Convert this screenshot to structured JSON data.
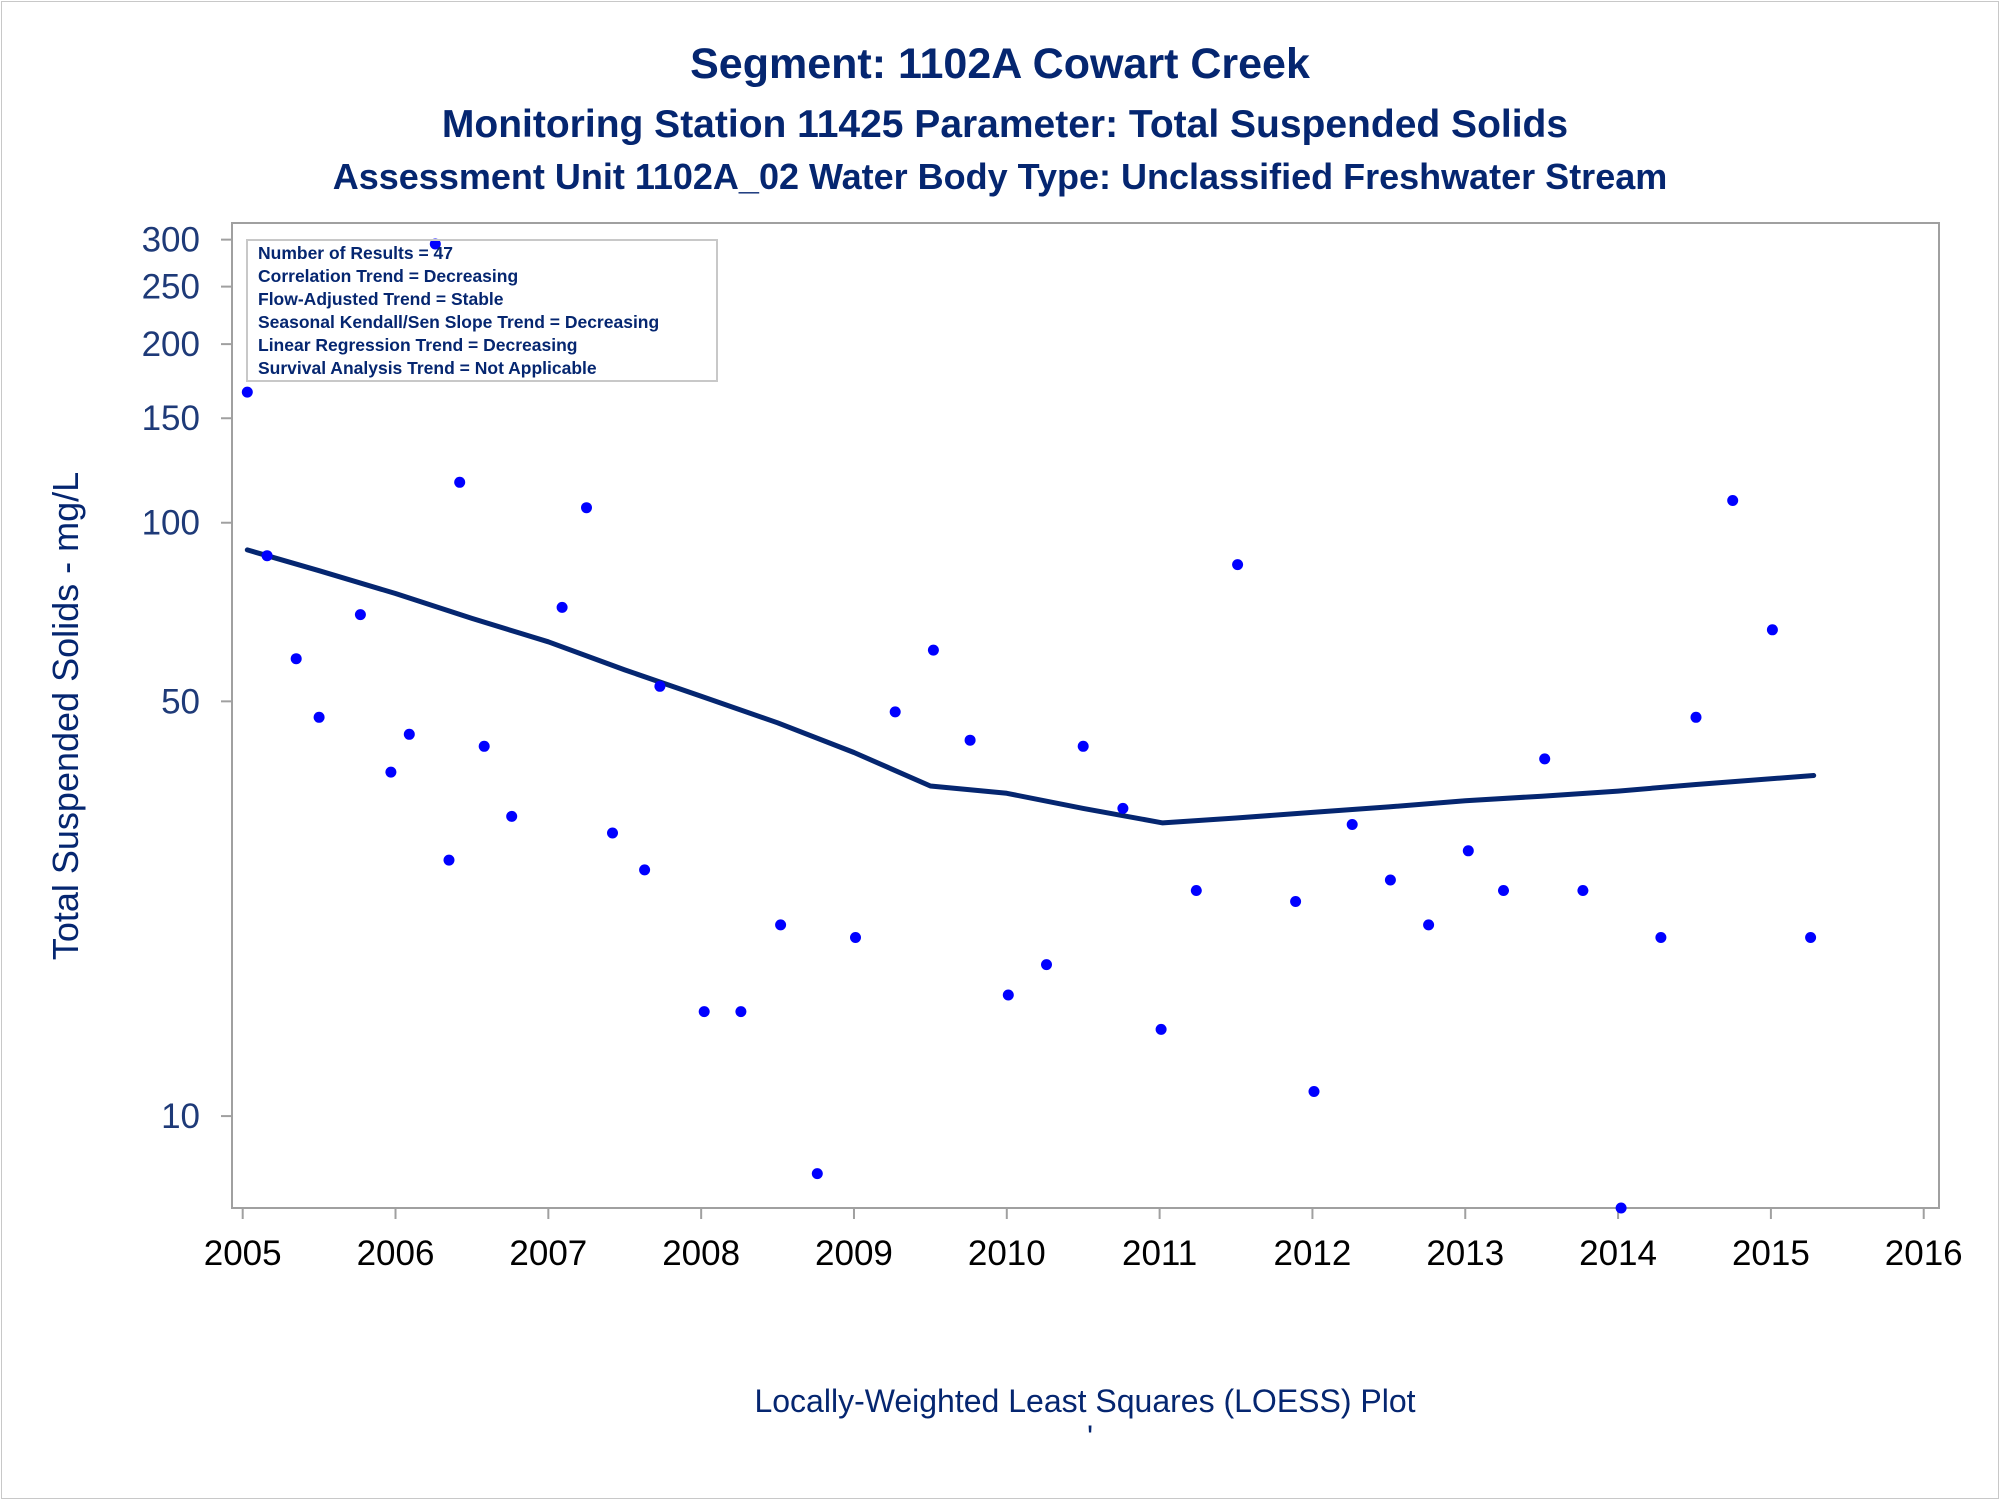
{
  "chart_data": {
    "type": "scatter",
    "title": "Segment: 1102A  Cowart Creek",
    "subtitle": "Monitoring Station 11425 Parameter: Total Suspended Solids",
    "subtitle2": "Assessment Unit 1102A_02   Water Body Type: Unclassified Freshwater Stream",
    "ylabel": "Total Suspended Solids - mg/L",
    "footnote": "Locally-Weighted Least Squares (LOESS) Plot",
    "footnote_mark": "'",
    "y_scale": "log",
    "y_ticks": [
      10,
      50,
      100,
      150,
      200,
      250,
      300
    ],
    "y_tick_labels": [
      "10",
      "50",
      "100",
      "150",
      "200",
      "250",
      "300"
    ],
    "x_ticks": [
      2005,
      2006,
      2007,
      2008,
      2009,
      2010,
      2011,
      2012,
      2013,
      2014,
      2015,
      2016
    ],
    "x_tick_labels": [
      "2005",
      "2006",
      "2007",
      "2008",
      "2009",
      "2010",
      "2011",
      "2012",
      "2013",
      "2014",
      "2015",
      "2016"
    ],
    "xlim": [
      2004.93,
      2016.1
    ],
    "ylim": [
      7,
      320
    ],
    "grid": false,
    "inset": [
      "Number of Results = 47",
      "Correlation Trend = Decreasing",
      "Flow-Adjusted Trend = Stable",
      "Seasonal Kendall/Sen Slope Trend = Decreasing",
      "Linear Regression Trend = Decreasing",
      "Survival Analysis Trend = Not Applicable"
    ],
    "inset_placement": "top-left",
    "colors": {
      "points": "#0000ff",
      "loess": "#052670",
      "text": "#052670",
      "frame": "#a0a0a0"
    },
    "series": [
      {
        "kind": "points",
        "points": [
          [
            2005.03,
            166
          ],
          [
            2005.16,
            88
          ],
          [
            2005.35,
            59
          ],
          [
            2005.5,
            47
          ],
          [
            2005.77,
            70
          ],
          [
            2005.97,
            38
          ],
          [
            2006.09,
            44
          ],
          [
            2006.26,
            295
          ],
          [
            2006.35,
            27
          ],
          [
            2006.42,
            117
          ],
          [
            2006.58,
            42
          ],
          [
            2006.76,
            32
          ],
          [
            2007.09,
            72
          ],
          [
            2007.25,
            106
          ],
          [
            2007.42,
            30
          ],
          [
            2007.63,
            26
          ],
          [
            2007.73,
            53
          ],
          [
            2008.02,
            15
          ],
          [
            2008.26,
            15
          ],
          [
            2008.52,
            21
          ],
          [
            2008.76,
            8
          ],
          [
            2009.01,
            20
          ],
          [
            2009.27,
            48
          ],
          [
            2009.52,
            61
          ],
          [
            2009.76,
            43
          ],
          [
            2010.01,
            16
          ],
          [
            2010.26,
            18
          ],
          [
            2010.5,
            42
          ],
          [
            2010.76,
            33
          ],
          [
            2011.01,
            14
          ],
          [
            2011.24,
            24
          ],
          [
            2011.51,
            85
          ],
          [
            2011.89,
            23
          ],
          [
            2012.01,
            11
          ],
          [
            2012.26,
            31
          ],
          [
            2012.51,
            25
          ],
          [
            2012.76,
            21
          ],
          [
            2013.02,
            28
          ],
          [
            2013.25,
            24
          ],
          [
            2013.52,
            40
          ],
          [
            2013.77,
            24
          ],
          [
            2014.02,
            7
          ],
          [
            2014.28,
            20
          ],
          [
            2014.51,
            47
          ],
          [
            2014.75,
            109
          ],
          [
            2015.01,
            66
          ],
          [
            2015.26,
            20
          ]
        ]
      },
      {
        "kind": "loess",
        "points": [
          [
            2005.03,
            90
          ],
          [
            2005.5,
            83
          ],
          [
            2006.0,
            76
          ],
          [
            2006.5,
            69
          ],
          [
            2007.0,
            63
          ],
          [
            2007.5,
            56.5
          ],
          [
            2008.0,
            51
          ],
          [
            2008.5,
            46
          ],
          [
            2009.0,
            41
          ],
          [
            2009.5,
            36
          ],
          [
            2010.0,
            35
          ],
          [
            2010.5,
            33
          ],
          [
            2011.02,
            31.2
          ],
          [
            2011.5,
            31.8
          ],
          [
            2012.0,
            32.5
          ],
          [
            2012.5,
            33.2
          ],
          [
            2013.0,
            34
          ],
          [
            2013.5,
            34.6
          ],
          [
            2014.0,
            35.3
          ],
          [
            2014.5,
            36.2
          ],
          [
            2015.28,
            37.5
          ]
        ]
      }
    ]
  }
}
